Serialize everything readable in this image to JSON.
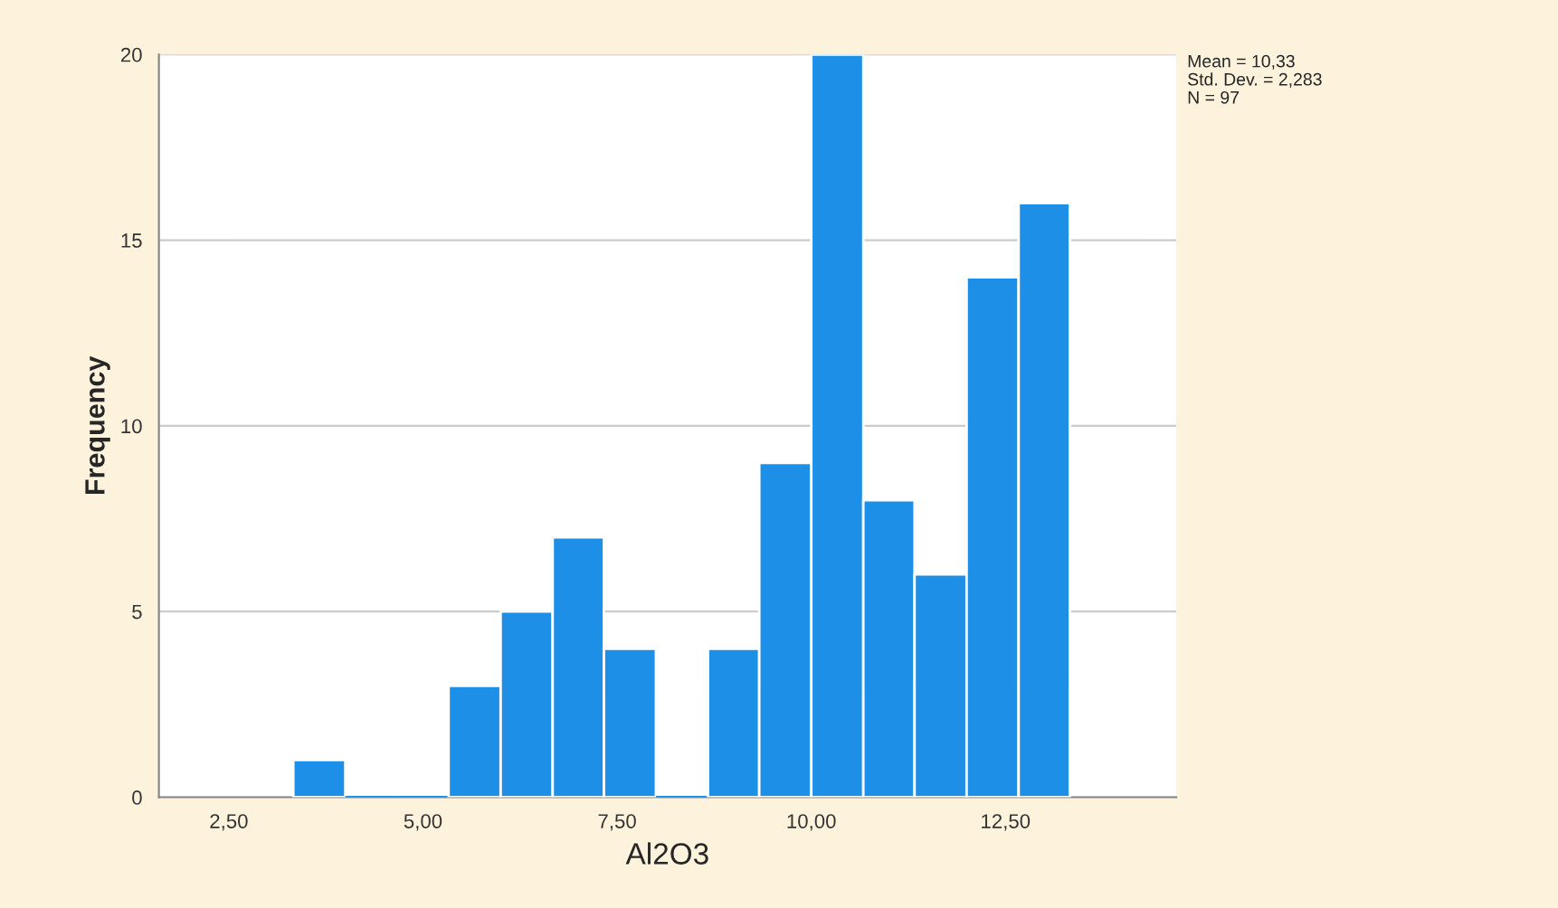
{
  "chart_data": {
    "type": "histogram",
    "xlabel": "Al2O3",
    "ylabel": "Frequency",
    "bins": [
      3.33,
      4.0,
      4.67,
      5.33,
      6.0,
      6.67,
      7.33,
      8.0,
      8.67,
      9.33,
      10.0,
      10.67,
      11.33,
      12.0,
      12.67,
      13.33
    ],
    "values": [
      1,
      0,
      0,
      3,
      5,
      7,
      4,
      0,
      4,
      9,
      20,
      8,
      6,
      14,
      16
    ],
    "color": "#1e8fe6",
    "xlim": [
      1.6,
      14.7
    ],
    "xticks": [
      {
        "value": 2.5,
        "label": "2,50"
      },
      {
        "value": 5,
        "label": "5,00"
      },
      {
        "value": 7.5,
        "label": "7,50"
      },
      {
        "value": 10,
        "label": "10,00"
      },
      {
        "value": 12.5,
        "label": "12,50"
      }
    ],
    "ylim": [
      0,
      20
    ],
    "yticks": [
      0,
      5,
      10,
      15,
      20
    ],
    "grid": "y",
    "annotations": [
      "Mean = 10,33",
      "Std. Dev. = 2,283",
      "N = 97"
    ]
  }
}
